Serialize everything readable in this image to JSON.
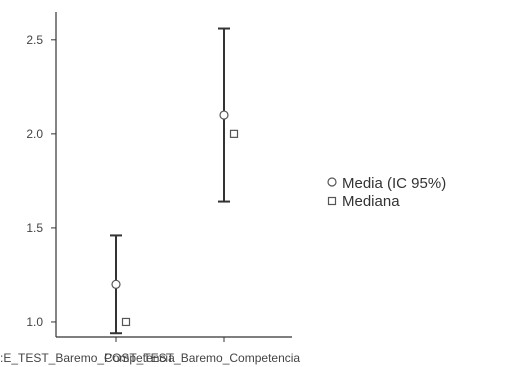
{
  "chart_data": {
    "type": "scatter",
    "title": "",
    "xlabel": "",
    "ylabel": "",
    "categories": [
      "PRE_TEST_Baremo_Competencia",
      "POST_TEST_Baremo_Competencia"
    ],
    "x_tick_labels_as_shown": [
      ":E_TEST_Baremo_Competencia",
      "POST_TEST_Baremo_Competencia"
    ],
    "ylim": [
      0.92,
      2.6
    ],
    "yticks": [
      "1.0",
      "1.5",
      "2.0",
      "2.5"
    ],
    "ytick_values": [
      1.0,
      1.5,
      2.0,
      2.5
    ],
    "grid": false,
    "legend_position": "right",
    "series": [
      {
        "name": "Media (IC 95%)",
        "marker": "circle",
        "values": [
          1.2,
          2.1
        ],
        "ci_lower": [
          0.94,
          1.64
        ],
        "ci_upper": [
          1.46,
          2.56
        ]
      },
      {
        "name": "Mediana",
        "marker": "square",
        "values": [
          1.0,
          2.0
        ]
      }
    ]
  },
  "colors": {
    "axis": "#333333",
    "errorbar": "#333333",
    "marker_fill": "#ffffff",
    "marker_stroke": "#555555"
  }
}
